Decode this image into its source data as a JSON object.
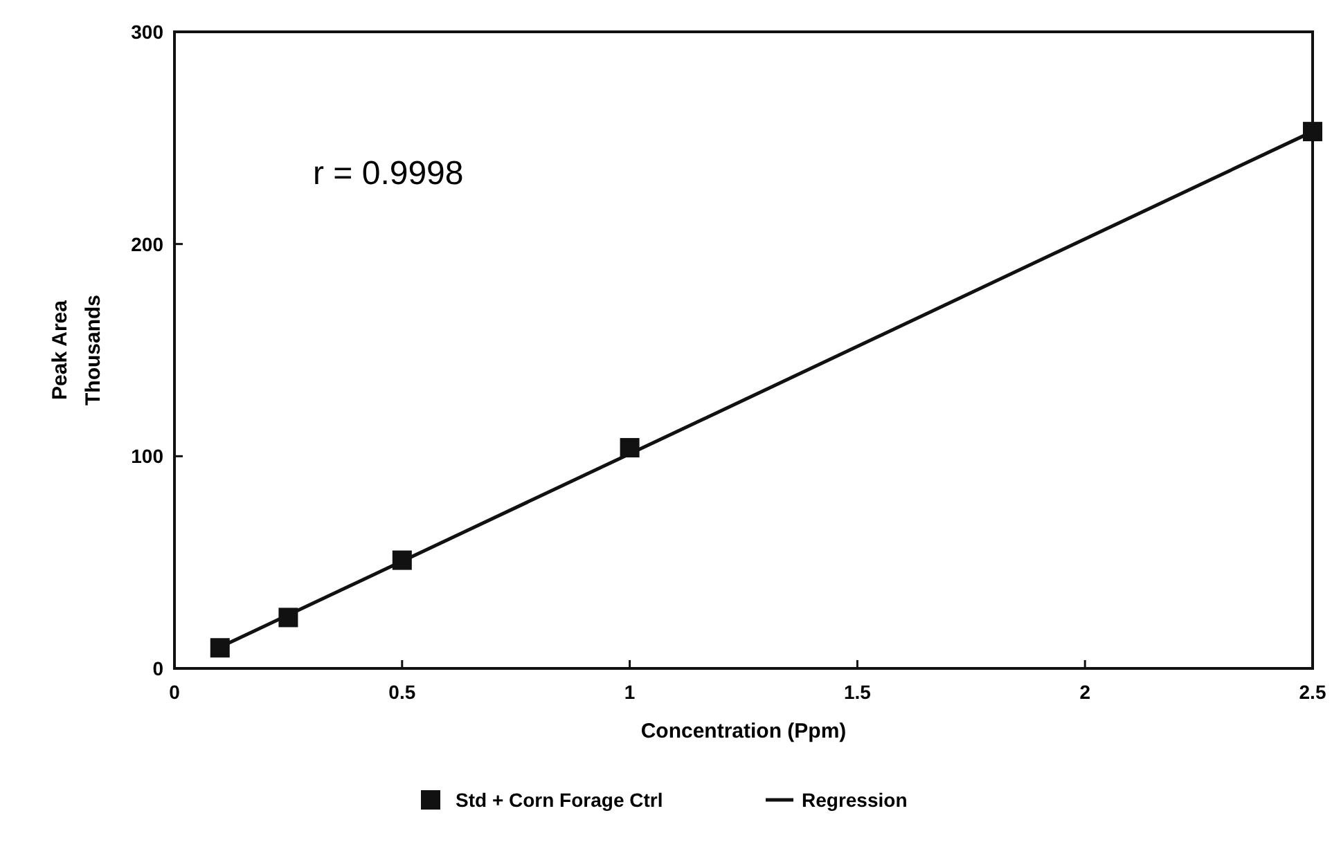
{
  "chart_data": {
    "type": "scatter",
    "xlabel": "Concentration (Ppm)",
    "ylabel": "Peak Area\nThousands",
    "x": [
      0.1,
      0.25,
      0.5,
      1,
      2.5
    ],
    "series": [
      {
        "name": "Std + Corn Forage Ctrl",
        "color": "#111111",
        "marker": "square",
        "values": [
          9.7,
          24,
          51,
          104,
          253
        ]
      },
      {
        "name": "Regression",
        "type": "line",
        "color": "#111111",
        "marker": "none",
        "x": [
          0.1,
          2.5
        ],
        "values": [
          10,
          253
        ]
      }
    ],
    "xlim": [
      0,
      2.5
    ],
    "xticks": [
      0,
      0.5,
      1,
      1.5,
      2,
      2.5
    ],
    "ylim": [
      0,
      300
    ],
    "yticks": [
      0,
      100,
      200,
      300
    ],
    "annotations": [
      "r = 0.9998"
    ],
    "legend": "bottom",
    "grid": false
  }
}
